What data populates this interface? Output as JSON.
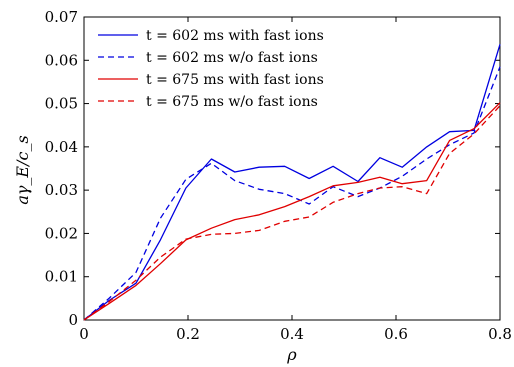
{
  "chart_data": {
    "type": "line",
    "xlabel": "ρ",
    "ylabel": "aγ_E/c_s",
    "xlim": [
      0,
      0.8
    ],
    "ylim": [
      0,
      0.07
    ],
    "xticks": [
      0,
      0.2,
      0.4,
      0.6,
      0.8
    ],
    "xtick_labels": [
      "0",
      "0.2",
      "0.4",
      "0.6",
      "0.8"
    ],
    "yticks": [
      0,
      0.01,
      0.02,
      0.03,
      0.04,
      0.05,
      0.06,
      0.07
    ],
    "ytick_labels": [
      "0",
      "0.01",
      "0.02",
      "0.03",
      "0.04",
      "0.05",
      "0.06",
      "0.07"
    ],
    "grid": false,
    "legend_position": "top-left",
    "series": [
      {
        "name": "t = 602 ms with fast ions",
        "t_label": "t = 602 ms with fast ions",
        "color": "#0000e0",
        "dash": "solid",
        "x": [
          0,
          0.048,
          0.1,
          0.147,
          0.196,
          0.245,
          0.29,
          0.337,
          0.386,
          0.433,
          0.479,
          0.527,
          0.569,
          0.612,
          0.659,
          0.703,
          0.75,
          0.8
        ],
        "y": [
          0,
          0.0045,
          0.0085,
          0.0185,
          0.0305,
          0.0372,
          0.0342,
          0.0353,
          0.0355,
          0.0327,
          0.0355,
          0.032,
          0.0375,
          0.0353,
          0.04,
          0.0435,
          0.0438,
          0.0637
        ]
      },
      {
        "name": "t = 602 ms w/o fast ions",
        "t_label": "t = 602 ms w/o fast ions",
        "color": "#0000e0",
        "dash": "dashed",
        "x": [
          0,
          0.048,
          0.1,
          0.147,
          0.196,
          0.245,
          0.29,
          0.337,
          0.386,
          0.433,
          0.479,
          0.527,
          0.569,
          0.612,
          0.659,
          0.703,
          0.75,
          0.8
        ],
        "y": [
          0,
          0.005,
          0.011,
          0.0235,
          0.0325,
          0.0362,
          0.0322,
          0.0302,
          0.0292,
          0.0268,
          0.0308,
          0.0285,
          0.0305,
          0.0332,
          0.0372,
          0.0405,
          0.0432,
          0.0585
        ]
      },
      {
        "name": "t = 675 ms with fast ions",
        "t_label": "t = 675 ms with fast ions",
        "color": "#e00000",
        "dash": "solid",
        "x": [
          0,
          0.048,
          0.1,
          0.147,
          0.196,
          0.245,
          0.29,
          0.337,
          0.386,
          0.433,
          0.479,
          0.527,
          0.569,
          0.612,
          0.659,
          0.703,
          0.75,
          0.8
        ],
        "y": [
          0,
          0.0038,
          0.008,
          0.013,
          0.0185,
          0.0212,
          0.0232,
          0.0243,
          0.0262,
          0.0285,
          0.031,
          0.0318,
          0.033,
          0.0315,
          0.0322,
          0.0415,
          0.0442,
          0.0502
        ]
      },
      {
        "name": "t = 675 ms w/o fast ions",
        "t_label": "t = 675 ms w/o fast ions",
        "color": "#e00000",
        "dash": "dashed",
        "x": [
          0,
          0.048,
          0.1,
          0.147,
          0.196,
          0.245,
          0.29,
          0.337,
          0.386,
          0.433,
          0.479,
          0.527,
          0.569,
          0.612,
          0.659,
          0.703,
          0.75,
          0.8
        ],
        "y": [
          0,
          0.0042,
          0.0092,
          0.0145,
          0.0187,
          0.0198,
          0.02,
          0.0207,
          0.0228,
          0.0238,
          0.0272,
          0.0292,
          0.0305,
          0.0308,
          0.0292,
          0.0385,
          0.043,
          0.0495
        ]
      }
    ]
  }
}
